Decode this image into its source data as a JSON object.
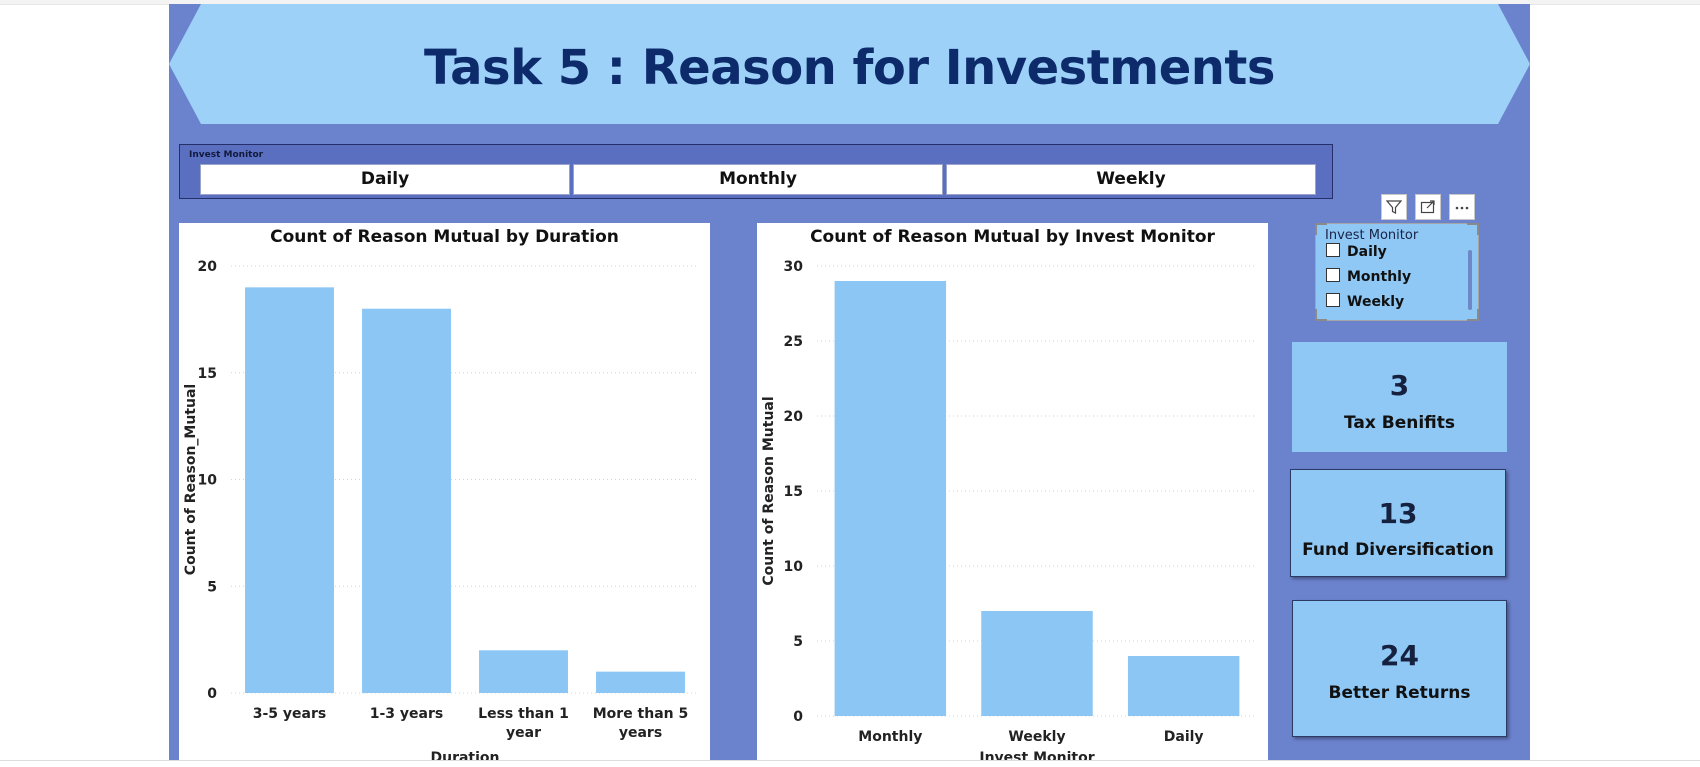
{
  "page": {
    "title": "Task 5 : Reason for Investments"
  },
  "slicer_bar": {
    "label": "Invest Monitor",
    "options": [
      "Daily",
      "Monthly",
      "Weekly"
    ]
  },
  "list_slicer": {
    "title": "Invest Monitor",
    "options": [
      "Daily",
      "Monthly",
      "Weekly"
    ],
    "toolbar_icons": [
      "filter-icon",
      "focus-mode-icon",
      "more-options-icon"
    ]
  },
  "cards": [
    {
      "value": "3",
      "label": "Tax Benifits"
    },
    {
      "value": "13",
      "label": "Fund Diversification"
    },
    {
      "value": "24",
      "label": "Better Returns"
    }
  ],
  "colors": {
    "background": "#6b82cc",
    "banner": "#9dd1f8",
    "bar": "#8cc6f5",
    "title_text": "#0d2a6b"
  },
  "chart_data": [
    {
      "type": "bar",
      "title": "Count of Reason Mutual by Duration",
      "xlabel": "Duration",
      "ylabel": "Count of Reason_Mutual",
      "categories": [
        "3-5 years",
        "1-3 years",
        "Less than 1 year",
        "More than 5 years"
      ],
      "values": [
        19,
        18,
        2,
        1
      ],
      "ylim": [
        0,
        20
      ],
      "yticks": [
        0,
        5,
        10,
        15,
        20
      ],
      "grid": true
    },
    {
      "type": "bar",
      "title": "Count of Reason Mutual by Invest Monitor",
      "xlabel": "Invest Monitor",
      "ylabel": "Count of Reason Mutual",
      "categories": [
        "Monthly",
        "Weekly",
        "Daily"
      ],
      "values": [
        29,
        7,
        4
      ],
      "ylim": [
        0,
        30
      ],
      "yticks": [
        0,
        5,
        10,
        15,
        20,
        25,
        30
      ],
      "grid": true
    }
  ]
}
